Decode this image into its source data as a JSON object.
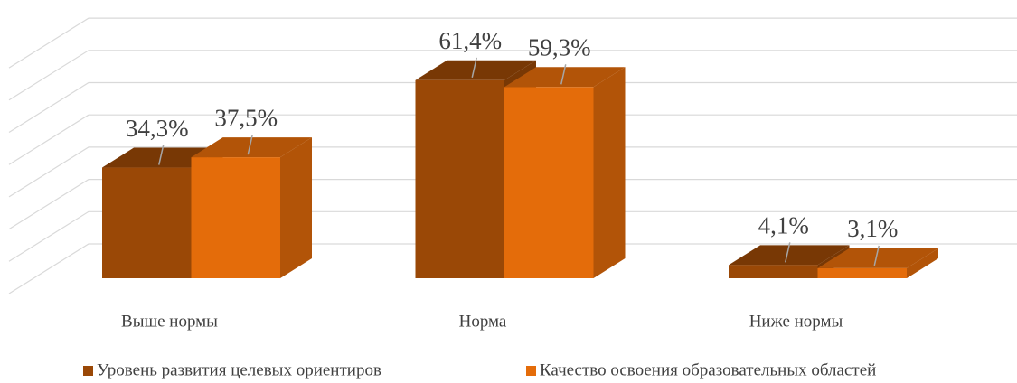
{
  "chart_data": {
    "type": "bar3d",
    "categories": [
      "Выше нормы",
      "Норма",
      "Ниже нормы"
    ],
    "series": [
      {
        "name": "Уровень развития целевых ориентиров",
        "color": "#9a4806",
        "values": [
          34.3,
          61.4,
          4.1
        ],
        "value_labels": [
          "34,3%",
          "61,4%",
          "4,1%"
        ]
      },
      {
        "name": "Качество освоения образовательных областей",
        "color": "#e46c0a",
        "values": [
          37.5,
          59.3,
          3.1
        ],
        "value_labels": [
          "37,5%",
          "59,3%",
          "3,1%"
        ]
      }
    ],
    "ylim": [
      0,
      70
    ],
    "yticks": [
      0,
      10,
      20,
      30,
      40,
      50,
      60,
      70
    ],
    "grid": true,
    "legend": "bottom"
  }
}
